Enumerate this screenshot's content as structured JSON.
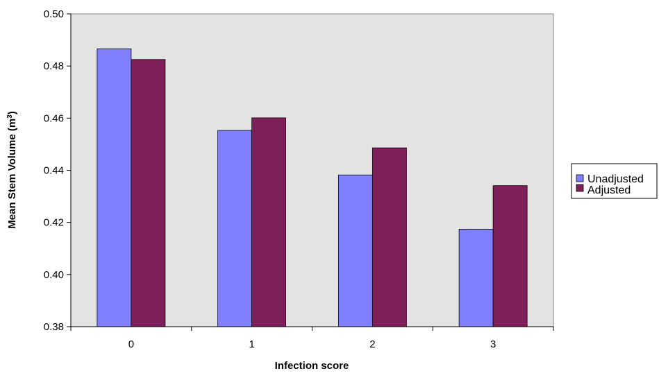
{
  "chart_data": {
    "type": "bar",
    "categories": [
      "0",
      "1",
      "2",
      "3"
    ],
    "series": [
      {
        "name": "Unadjusted",
        "values": [
          0.4866,
          0.4553,
          0.4382,
          0.4174
        ]
      },
      {
        "name": "Adjusted",
        "values": [
          0.4825,
          0.4601,
          0.4486,
          0.4341
        ]
      }
    ],
    "xlabel": "Infection score",
    "ylabel": "Mean Stem Volume (m",
    "ylabel_superscript": "3",
    "ylabel_suffix": ")",
    "ylim": [
      0.38,
      0.5
    ],
    "yticks": [
      "0.38",
      "0.40",
      "0.42",
      "0.44",
      "0.46",
      "0.48",
      "0.50"
    ],
    "colors": {
      "Unadjusted": "#8080ff",
      "Adjusted": "#7f1f5a",
      "plot_background": "#e3e3e3"
    },
    "grid": false,
    "legend_position": "right"
  }
}
